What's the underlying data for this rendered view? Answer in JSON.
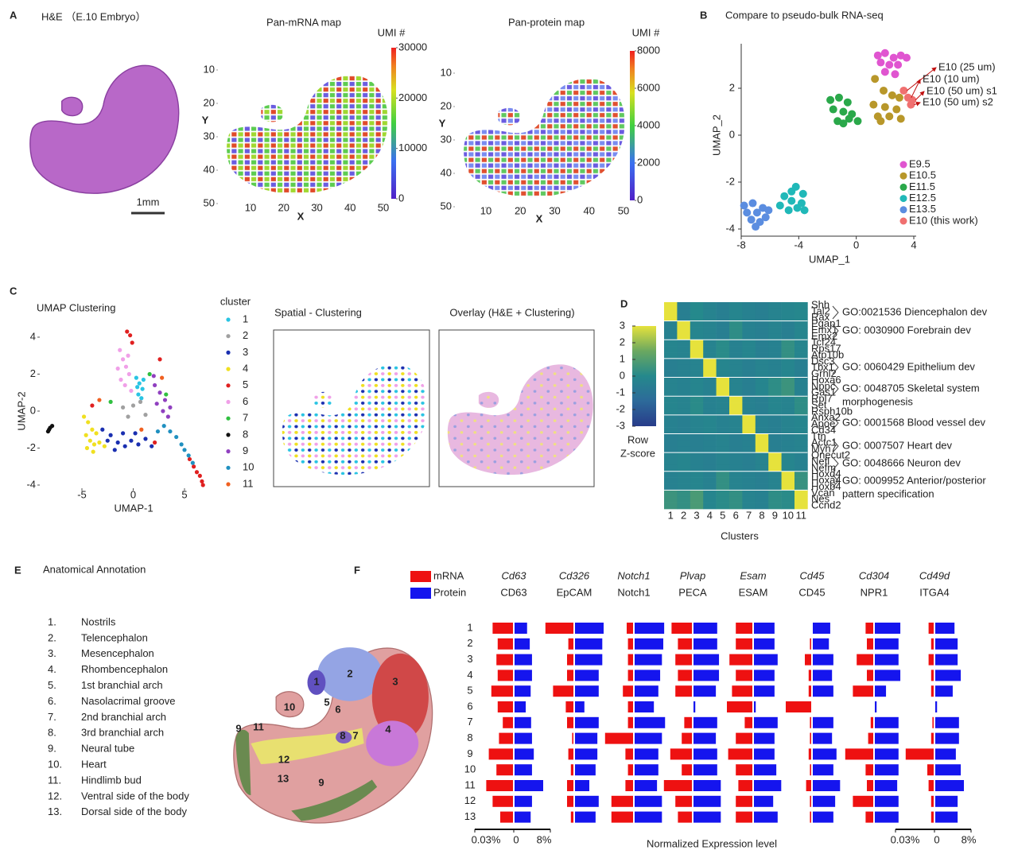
{
  "figure": {
    "A": {
      "label": "A",
      "title": "H&E （E.10 Embryo）",
      "scale_bar": "1mm",
      "maps": [
        {
          "title": "Pan-mRNA map",
          "colorbar_title": "UMI #",
          "xlabel": "X",
          "ylabel": "Y",
          "xticks": [
            10,
            20,
            30,
            40,
            50
          ],
          "yticks": [
            10,
            20,
            30,
            40,
            50
          ],
          "colorbar_ticks": [
            0,
            10000,
            20000,
            30000
          ]
        },
        {
          "title": "Pan-protein map",
          "colorbar_title": "UMI #",
          "xlabel": "X",
          "ylabel": "Y",
          "xticks": [
            10,
            20,
            30,
            40,
            50
          ],
          "yticks": [
            10,
            20,
            30,
            40,
            50
          ],
          "colorbar_ticks": [
            0,
            2000,
            4000,
            6000,
            8000
          ]
        }
      ]
    },
    "B": {
      "label": "B",
      "title": "Compare to pseudo-bulk RNA-seq",
      "xlabel": "UMAP_1",
      "ylabel": "UMAP_2",
      "xticks": [
        -8,
        -4,
        0,
        4
      ],
      "yticks": [
        -4,
        -2,
        0,
        2
      ],
      "series": [
        {
          "name": "E9.5",
          "color": "#e055d0",
          "x": [
            1.5,
            2.0,
            2.6,
            3.1,
            1.7,
            2.3,
            2.9,
            3.5,
            2.0,
            2.7
          ],
          "y": [
            3.4,
            3.5,
            3.3,
            3.4,
            3.1,
            3.0,
            3.0,
            3.3,
            2.7,
            2.6
          ]
        },
        {
          "name": "E10.5",
          "color": "#b8972a",
          "x": [
            1.3,
            1.9,
            2.5,
            3.0,
            1.2,
            2.0,
            2.8,
            1.5,
            2.3,
            3.1,
            1.7
          ],
          "y": [
            2.4,
            1.9,
            1.7,
            1.6,
            1.3,
            1.2,
            1.1,
            0.8,
            0.8,
            0.7,
            0.6
          ]
        },
        {
          "name": "E11.5",
          "color": "#2aa84a",
          "x": [
            -1.8,
            -1.2,
            -0.6,
            -1.6,
            -0.9,
            -0.3,
            -1.3,
            -0.5,
            0.1,
            -0.9
          ],
          "y": [
            1.5,
            1.6,
            1.4,
            1.1,
            1.0,
            0.9,
            0.6,
            0.7,
            0.6,
            0.5
          ]
        },
        {
          "name": "E12.5",
          "color": "#20b8b8",
          "x": [
            -4.2,
            -3.7,
            -5.0,
            -4.5,
            -3.8,
            -5.3,
            -4.7,
            -4.1,
            -3.6,
            -4.5
          ],
          "y": [
            -2.2,
            -2.5,
            -2.6,
            -2.8,
            -2.9,
            -3.0,
            -3.2,
            -3.1,
            -3.2,
            -2.4
          ]
        },
        {
          "name": "E13.5",
          "color": "#5b8de0",
          "x": [
            -7.8,
            -7.2,
            -6.5,
            -7.6,
            -6.9,
            -6.3,
            -7.3,
            -6.7,
            -7.0,
            -6.1
          ],
          "y": [
            -3.0,
            -2.9,
            -3.1,
            -3.3,
            -3.3,
            -3.5,
            -3.6,
            -3.7,
            -3.9,
            -3.2
          ]
        },
        {
          "name": "E10 (this work)",
          "color": "#f07070",
          "x": [
            3.3,
            3.6,
            3.9,
            3.8
          ],
          "y": [
            1.9,
            1.6,
            1.5,
            1.3
          ]
        }
      ],
      "annotations": [
        "E10 (25 um)",
        "E10 (10 um)",
        "E10 (50 um) s1",
        "E10 (50 um) s2"
      ]
    },
    "C": {
      "label": "C",
      "title": "UMAP Clustering",
      "xlabel": "UMAP-1",
      "ylabel": "UMAP-2",
      "xticks": [
        -5,
        0,
        5
      ],
      "yticks": [
        -4,
        -2,
        0,
        2,
        4
      ],
      "legend_title": "cluster",
      "spatial_title": "Spatial - Clustering",
      "overlay_title": "Overlay (H&E + Clustering)",
      "clusters": [
        {
          "name": "1",
          "color": "#29c4e3",
          "x": [
            0.3,
            0.6,
            0.9,
            0.5,
            0.8,
            0.4,
            1.0
          ],
          "y": [
            1.8,
            1.5,
            1.2,
            0.9,
            0.7,
            1.3,
            1.7
          ]
        },
        {
          "name": "2",
          "color": "#a0a0a0",
          "x": [
            0.0,
            -0.5,
            0.7,
            1.2,
            -1.0
          ],
          "y": [
            0.3,
            -0.3,
            0.5,
            -0.2,
            0.2
          ]
        },
        {
          "name": "3",
          "color": "#1a2fb0",
          "x": [
            -3.0,
            -2.2,
            -1.5,
            -0.8,
            -0.2,
            0.5,
            1.2,
            1.8,
            -2.5,
            -1.0,
            0.2,
            -1.8
          ],
          "y": [
            -1.0,
            -1.3,
            -1.7,
            -1.9,
            -1.6,
            -1.8,
            -1.5,
            -1.9,
            -1.6,
            -1.2,
            -1.2,
            -2.1
          ]
        },
        {
          "name": "4",
          "color": "#f0e020",
          "x": [
            -4.8,
            -4.4,
            -4.0,
            -3.6,
            -4.6,
            -4.2,
            -3.8,
            -3.3,
            -4.5,
            -3.9,
            -2.8
          ],
          "y": [
            -0.3,
            -0.6,
            -1.0,
            -1.2,
            -1.3,
            -1.6,
            -1.8,
            -1.7,
            -2.0,
            -2.2,
            -1.9
          ]
        },
        {
          "name": "5",
          "color": "#e02020",
          "x": [
            -0.6,
            -0.3,
            -0.1,
            5.5,
            5.9,
            6.2,
            6.5,
            6.7,
            6.8,
            -4.0,
            2.1,
            2.6
          ],
          "y": [
            4.3,
            4.1,
            3.7,
            -2.6,
            -3.0,
            -3.3,
            -3.5,
            -3.8,
            -4.0,
            0.3,
            -1.7,
            2.8
          ]
        },
        {
          "name": "6",
          "color": "#f0a0e8",
          "x": [
            -1.3,
            -1.0,
            -0.7,
            -0.4,
            -1.2,
            -0.8,
            -0.5,
            -1.5,
            -0.2
          ],
          "y": [
            3.3,
            2.8,
            2.4,
            2.0,
            1.7,
            1.4,
            3.0,
            2.3,
            1.1
          ]
        },
        {
          "name": "7",
          "color": "#30c040",
          "x": [
            -2.2,
            1.6,
            3.2
          ],
          "y": [
            0.5,
            2.0,
            0.9
          ]
        },
        {
          "name": "8",
          "color": "#111111",
          "x": [
            -8.3,
            -8.1,
            -7.9,
            -8.2
          ],
          "y": [
            -1.1,
            -0.9,
            -0.8,
            -1.0
          ]
        },
        {
          "name": "9",
          "color": "#9040c0",
          "x": [
            2.1,
            2.6,
            3.1,
            3.6,
            2.3,
            2.9,
            3.4,
            2.0
          ],
          "y": [
            1.4,
            1.0,
            0.6,
            0.2,
            0.4,
            0.0,
            -0.3,
            1.9
          ]
        },
        {
          "name": "10",
          "color": "#2090c0",
          "x": [
            3.0,
            3.6,
            4.2,
            4.7,
            5.0,
            5.4,
            5.8,
            2.4
          ],
          "y": [
            -0.8,
            -1.1,
            -1.4,
            -1.8,
            -2.1,
            -2.4,
            -2.8,
            -1.1
          ]
        },
        {
          "name": "11",
          "color": "#f06020",
          "x": [
            -3.3,
            0.8,
            2.8
          ],
          "y": [
            0.6,
            -1.0,
            1.8
          ]
        }
      ]
    },
    "D": {
      "label": "D",
      "genes": [
        "Shh",
        "Tal2",
        "Rax",
        "Pgap1",
        "Emx1",
        "Emx2",
        "Tcf24",
        "Rps17",
        "Atp10b",
        "Dsc3",
        "Tbx1",
        "Grhl2",
        "Hoxa6",
        "Nppc",
        "Gas1",
        "Rpl7",
        "Set",
        "Rsph10b",
        "Anxa2",
        "Apoe",
        "Cd34",
        "Ttn",
        "Actc1",
        "Myh7",
        "Onecut2",
        "Nefl",
        "Nefm",
        "Hoxd4",
        "Hoxa4",
        "Hoxb4",
        "Vcan",
        "Nes",
        "Ccnd2"
      ],
      "z": [
        [
          3,
          -0.5,
          0,
          -0.3,
          -0.5,
          -0.2,
          -0.4,
          -0.5,
          -0.3,
          -0.2,
          -0.1
        ],
        [
          -0.4,
          3,
          -0.2,
          -0.3,
          -0.5,
          0.2,
          -0.4,
          -0.5,
          -0.3,
          -0.5,
          -0.2
        ],
        [
          -0.2,
          -0.3,
          3,
          -0.3,
          0.1,
          -0.4,
          -0.2,
          -0.5,
          -0.4,
          0.3,
          -0.2
        ],
        [
          -0.5,
          -0.4,
          -0.3,
          3,
          -0.2,
          -0.3,
          -0.5,
          -0.3,
          -0.4,
          -0.2,
          -0.5
        ],
        [
          -0.3,
          -0.4,
          -0.2,
          -0.4,
          3,
          -0.3,
          -0.5,
          -0.2,
          0.2,
          0.5,
          -0.4
        ],
        [
          -0.2,
          -0.3,
          0.1,
          -0.4,
          -0.3,
          3,
          -0.4,
          -0.5,
          -0.2,
          -0.3,
          0.2
        ],
        [
          -0.4,
          -0.5,
          -0.3,
          -0.2,
          -0.4,
          -0.3,
          3,
          -0.4,
          -0.5,
          -0.3,
          -0.2
        ],
        [
          -0.5,
          -0.4,
          -0.5,
          -0.4,
          -0.3,
          -0.5,
          -0.4,
          3,
          -0.5,
          -0.4,
          -0.3
        ],
        [
          -0.3,
          -0.2,
          -0.4,
          -0.5,
          -0.3,
          -0.4,
          -0.5,
          -0.3,
          3,
          -0.2,
          -0.4
        ],
        [
          -0.4,
          -0.3,
          -0.2,
          -0.4,
          0.3,
          -0.3,
          -0.4,
          -0.5,
          -0.3,
          3,
          0.4
        ],
        [
          0.5,
          0.3,
          0.8,
          -0.2,
          0.1,
          0.3,
          -0.3,
          -0.4,
          0.2,
          0.1,
          3
        ]
      ],
      "zticks": [
        3,
        2,
        1,
        0,
        -1,
        -2,
        -3
      ],
      "colorbar_title": [
        "Row",
        "Z-score"
      ],
      "clusters": [
        "1",
        "2",
        "3",
        "4",
        "5",
        "6",
        "7",
        "8",
        "9",
        "10",
        "11"
      ],
      "xlabel": "Clusters",
      "go_terms": [
        [
          "GO:0021536 Diencephalon dev"
        ],
        [
          "GO: 0030900 Forebrain dev"
        ],
        [
          "GO: 0060429 Epithelium dev"
        ],
        [
          "GO: 0048705 Skeletal system",
          "morphogenesis"
        ],
        [
          "GO: 0001568 Blood vessel dev"
        ],
        [
          "GO: 0007507 Heart dev"
        ],
        [
          "GO: 0048666 Neuron dev"
        ],
        [
          "GO: 0009952 Anterior/posterior",
          "pattern specification"
        ]
      ]
    },
    "E": {
      "label": "E",
      "title": "Anatomical Annotation",
      "items": [
        {
          "number": "1.",
          "name": "Nostrils"
        },
        {
          "number": "2.",
          "name": "Telencephalon"
        },
        {
          "number": "3.",
          "name": "Mesencephalon"
        },
        {
          "number": "4.",
          "name": "Rhombencephalon"
        },
        {
          "number": "5.",
          "name": "1st branchial arch"
        },
        {
          "number": "6.",
          "name": "Nasolacrimal groove"
        },
        {
          "number": "7.",
          "name": "2nd branchial arch"
        },
        {
          "number": "8.",
          "name": "3rd branchial arch"
        },
        {
          "number": "9.",
          "name": "Neural tube"
        },
        {
          "number": "10.",
          "name": "Heart"
        },
        {
          "number": "11.",
          "name": "Hindlimb bud"
        },
        {
          "number": "12.",
          "name": "Ventral side of the body"
        },
        {
          "number": "13.",
          "name": "Dorsal side of the body"
        }
      ],
      "region_labels": [
        "1",
        "2",
        "3",
        "4",
        "5",
        "6",
        "7",
        "8",
        "9",
        "10",
        "11",
        "12",
        "13"
      ]
    },
    "F": {
      "label": "F",
      "legend": [
        "mRNA",
        "Protein"
      ],
      "rows": [
        "1",
        "2",
        "3",
        "4",
        "5",
        "6",
        "7",
        "8",
        "9",
        "10",
        "11",
        "12",
        "13"
      ],
      "genes": [
        {
          "gene": "Cd63",
          "protein_name": "CD63",
          "mrna": [
            0.016,
            0.012,
            0.013,
            0.012,
            0.017,
            0.012,
            0.008,
            0.011,
            0.019,
            0.013,
            0.021,
            0.016,
            0.01
          ],
          "protein": [
            2.8,
            3.4,
            3.9,
            3.9,
            3.6,
            2.5,
            3.7,
            3.9,
            4.3,
            3.9,
            6.4,
            3.9,
            3.6
          ]
        },
        {
          "gene": "Cd326",
          "protein_name": "EpCAM",
          "mrna": [
            0.022,
            0.004,
            0.005,
            0.005,
            0.016,
            0.006,
            0.005,
            0.001,
            0.004,
            0.002,
            0.005,
            0.005,
            0.002
          ],
          "protein": [
            6.4,
            6.1,
            6.1,
            5.3,
            5.3,
            2.1,
            5.3,
            5.0,
            5.0,
            4.6,
            3.2,
            5.3,
            4.6
          ]
        },
        {
          "gene": "Notch1",
          "protein_name": "Notch1",
          "mrna": [
            0.005,
            0.004,
            0.004,
            0.004,
            0.008,
            0.004,
            0.004,
            0.022,
            0.006,
            0.004,
            0.006,
            0.017,
            0.017
          ],
          "protein": [
            6.6,
            6.4,
            6.1,
            5.7,
            5.3,
            4.3,
            6.8,
            6.1,
            5.3,
            5.3,
            5.0,
            6.1,
            6.1
          ]
        },
        {
          "gene": "Plvap",
          "protein_name": "PECA",
          "mrna": [
            0.016,
            0.011,
            0.013,
            0.011,
            0.013,
            0,
            0.006,
            0.008,
            0.017,
            0.008,
            0.022,
            0.013,
            0.011
          ],
          "protein": [
            5.3,
            5.3,
            5.7,
            5.7,
            5.0,
            0.4,
            5.3,
            5.0,
            5.3,
            5.3,
            6.1,
            6.1,
            6.1
          ]
        },
        {
          "gene": "Esam",
          "protein_name": "ESAM",
          "mrna": [
            0.013,
            0.013,
            0.018,
            0.013,
            0.016,
            0.02,
            0.006,
            0.013,
            0.019,
            0.013,
            0.011,
            0.013,
            0.013
          ],
          "protein": [
            4.6,
            4.6,
            5.3,
            4.6,
            4.6,
            0.4,
            5.3,
            4.6,
            4.6,
            5.0,
            6.1,
            4.3,
            5.3
          ]
        },
        {
          "gene": "Cd45",
          "protein_name": "CD45",
          "mrna": [
            0,
            0.001,
            0.005,
            0.002,
            0.002,
            0.02,
            0.001,
            0.001,
            0.002,
            0.001,
            0.004,
            0.001,
            0.001
          ],
          "protein": [
            3.9,
            3.6,
            4.6,
            4.3,
            4.6,
            0,
            4.6,
            4.3,
            5.3,
            4.6,
            6.1,
            5.0,
            4.6
          ]
        },
        {
          "gene": "Cd304",
          "protein_name": "NPR1",
          "mrna": [
            0.006,
            0.005,
            0.013,
            0.005,
            0.016,
            0,
            0.002,
            0.004,
            0.022,
            0.006,
            0.005,
            0.016,
            0.006
          ],
          "protein": [
            5.7,
            5.3,
            5.3,
            5.7,
            2.5,
            0.4,
            5.3,
            5.3,
            5.3,
            5.3,
            5.0,
            5.3,
            5.3
          ]
        },
        {
          "gene": "Cd49d",
          "protein_name": "ITGA4",
          "mrna": [
            0.004,
            0.002,
            0.004,
            0.002,
            0.002,
            0,
            0.001,
            0.002,
            0.022,
            0.005,
            0.004,
            0.002,
            0.002
          ],
          "protein": [
            4.3,
            5.0,
            5.0,
            5.7,
            3.9,
            0.4,
            5.3,
            5.3,
            4.6,
            5.7,
            6.4,
            5.0,
            5.0
          ]
        }
      ],
      "scale_ticks": {
        "mrna": {
          "value": 0.03,
          "label": "0.03%"
        },
        "zero": 0,
        "protein": {
          "value": 8,
          "label": "8%"
        }
      },
      "xlabel": "Normalized Expression level"
    }
  }
}
